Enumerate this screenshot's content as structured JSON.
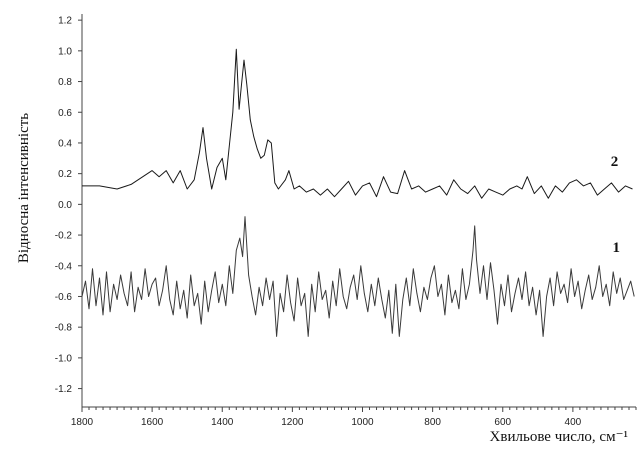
{
  "chart_data": {
    "type": "line",
    "title": "",
    "xlabel": "Хвильове число, см⁻¹",
    "ylabel": "Відносна інтенсивність",
    "xlim": [
      1800,
      220
    ],
    "ylim": [
      -1.32,
      1.24
    ],
    "x_reversed": true,
    "grid": false,
    "x_ticks": [
      "1800",
      "1600",
      "1400",
      "1200",
      "1000",
      "800",
      "600",
      "400"
    ],
    "x_tick_values": [
      1800,
      1600,
      1400,
      1200,
      1000,
      800,
      600,
      400
    ],
    "y_ticks": [
      "1.2",
      "1.0",
      "0.8",
      "0.6",
      "0.4",
      "0.2",
      "0.0",
      "-0.2",
      "-0.4",
      "-0.6",
      "-0.8",
      "-1.0",
      "-1.2"
    ],
    "y_tick_values": [
      1.2,
      1.0,
      0.8,
      0.6,
      0.4,
      0.2,
      0.0,
      -0.2,
      -0.4,
      -0.6,
      -0.8,
      -1.0,
      -1.2
    ],
    "series": [
      {
        "label": "2",
        "color": "#1a1a1a",
        "x": [
          1800,
          1750,
          1700,
          1660,
          1620,
          1600,
          1580,
          1560,
          1540,
          1520,
          1500,
          1480,
          1465,
          1455,
          1445,
          1430,
          1415,
          1400,
          1390,
          1380,
          1370,
          1360,
          1352,
          1345,
          1338,
          1330,
          1320,
          1310,
          1300,
          1290,
          1280,
          1270,
          1260,
          1250,
          1240,
          1220,
          1210,
          1195,
          1180,
          1160,
          1140,
          1120,
          1100,
          1080,
          1060,
          1040,
          1020,
          1000,
          980,
          960,
          940,
          920,
          900,
          880,
          870,
          860,
          840,
          820,
          800,
          780,
          760,
          740,
          720,
          700,
          680,
          660,
          640,
          620,
          600,
          580,
          560,
          545,
          530,
          510,
          490,
          470,
          450,
          430,
          410,
          390,
          370,
          350,
          330,
          310,
          290,
          270,
          250,
          230
        ],
        "y": [
          0.12,
          0.12,
          0.1,
          0.13,
          0.19,
          0.22,
          0.18,
          0.22,
          0.14,
          0.22,
          0.1,
          0.16,
          0.34,
          0.5,
          0.3,
          0.1,
          0.24,
          0.3,
          0.16,
          0.38,
          0.6,
          1.01,
          0.62,
          0.78,
          0.94,
          0.78,
          0.55,
          0.44,
          0.36,
          0.3,
          0.32,
          0.42,
          0.4,
          0.14,
          0.1,
          0.16,
          0.22,
          0.1,
          0.12,
          0.08,
          0.1,
          0.06,
          0.1,
          0.05,
          0.1,
          0.15,
          0.06,
          0.12,
          0.14,
          0.05,
          0.18,
          0.08,
          0.07,
          0.22,
          0.16,
          0.1,
          0.12,
          0.08,
          0.1,
          0.12,
          0.06,
          0.16,
          0.1,
          0.07,
          0.12,
          0.04,
          0.1,
          0.08,
          0.06,
          0.1,
          0.12,
          0.1,
          0.18,
          0.07,
          0.12,
          0.04,
          0.12,
          0.08,
          0.14,
          0.16,
          0.12,
          0.14,
          0.06,
          0.1,
          0.14,
          0.08,
          0.12,
          0.1
        ]
      },
      {
        "label": "1",
        "color": "#3a3a3a",
        "x": [
          1800,
          1790,
          1780,
          1770,
          1760,
          1750,
          1740,
          1730,
          1720,
          1710,
          1700,
          1690,
          1680,
          1670,
          1660,
          1650,
          1640,
          1630,
          1620,
          1610,
          1600,
          1590,
          1580,
          1570,
          1560,
          1550,
          1540,
          1530,
          1520,
          1510,
          1500,
          1490,
          1480,
          1470,
          1460,
          1450,
          1440,
          1430,
          1420,
          1410,
          1400,
          1390,
          1380,
          1370,
          1360,
          1350,
          1342,
          1335,
          1325,
          1315,
          1305,
          1295,
          1285,
          1275,
          1265,
          1255,
          1245,
          1235,
          1225,
          1215,
          1205,
          1195,
          1185,
          1175,
          1165,
          1155,
          1145,
          1135,
          1125,
          1115,
          1105,
          1095,
          1085,
          1075,
          1065,
          1055,
          1045,
          1035,
          1025,
          1015,
          1005,
          995,
          985,
          975,
          965,
          955,
          945,
          935,
          925,
          915,
          905,
          895,
          885,
          875,
          865,
          855,
          845,
          835,
          825,
          815,
          805,
          795,
          785,
          775,
          765,
          755,
          745,
          735,
          725,
          715,
          705,
          695,
          685,
          680,
          675,
          665,
          655,
          645,
          635,
          625,
          615,
          605,
          595,
          585,
          575,
          565,
          555,
          545,
          535,
          525,
          515,
          505,
          495,
          485,
          475,
          465,
          455,
          445,
          435,
          425,
          415,
          405,
          395,
          385,
          375,
          365,
          355,
          345,
          335,
          325,
          315,
          305,
          295,
          285,
          275,
          265,
          255,
          245,
          235,
          225
        ],
        "y": [
          -0.6,
          -0.5,
          -0.68,
          -0.42,
          -0.66,
          -0.48,
          -0.72,
          -0.44,
          -0.7,
          -0.52,
          -0.62,
          -0.46,
          -0.58,
          -0.66,
          -0.44,
          -0.7,
          -0.54,
          -0.62,
          -0.42,
          -0.6,
          -0.52,
          -0.48,
          -0.66,
          -0.56,
          -0.4,
          -0.62,
          -0.72,
          -0.5,
          -0.68,
          -0.56,
          -0.74,
          -0.46,
          -0.66,
          -0.58,
          -0.78,
          -0.5,
          -0.7,
          -0.56,
          -0.44,
          -0.64,
          -0.52,
          -0.66,
          -0.4,
          -0.58,
          -0.3,
          -0.22,
          -0.34,
          -0.08,
          -0.46,
          -0.6,
          -0.72,
          -0.54,
          -0.66,
          -0.48,
          -0.62,
          -0.5,
          -0.86,
          -0.58,
          -0.7,
          -0.46,
          -0.64,
          -0.76,
          -0.48,
          -0.66,
          -0.58,
          -0.86,
          -0.52,
          -0.7,
          -0.44,
          -0.62,
          -0.56,
          -0.74,
          -0.5,
          -0.66,
          -0.42,
          -0.6,
          -0.68,
          -0.54,
          -0.46,
          -0.62,
          -0.4,
          -0.58,
          -0.7,
          -0.52,
          -0.66,
          -0.48,
          -0.62,
          -0.74,
          -0.56,
          -0.84,
          -0.52,
          -0.86,
          -0.62,
          -0.48,
          -0.66,
          -0.42,
          -0.58,
          -0.7,
          -0.54,
          -0.62,
          -0.48,
          -0.4,
          -0.6,
          -0.52,
          -0.72,
          -0.46,
          -0.64,
          -0.56,
          -0.68,
          -0.42,
          -0.62,
          -0.52,
          -0.3,
          -0.14,
          -0.36,
          -0.58,
          -0.4,
          -0.62,
          -0.38,
          -0.56,
          -0.78,
          -0.52,
          -0.66,
          -0.46,
          -0.7,
          -0.58,
          -0.48,
          -0.62,
          -0.44,
          -0.66,
          -0.54,
          -0.72,
          -0.56,
          -0.86,
          -0.6,
          -0.48,
          -0.66,
          -0.44,
          -0.58,
          -0.52,
          -0.64,
          -0.42,
          -0.6,
          -0.5,
          -0.68,
          -0.56,
          -0.46,
          -0.62,
          -0.54,
          -0.4,
          -0.6,
          -0.52,
          -0.66,
          -0.44,
          -0.58,
          -0.48,
          -0.62,
          -0.56,
          -0.5,
          -0.6
        ]
      }
    ]
  }
}
